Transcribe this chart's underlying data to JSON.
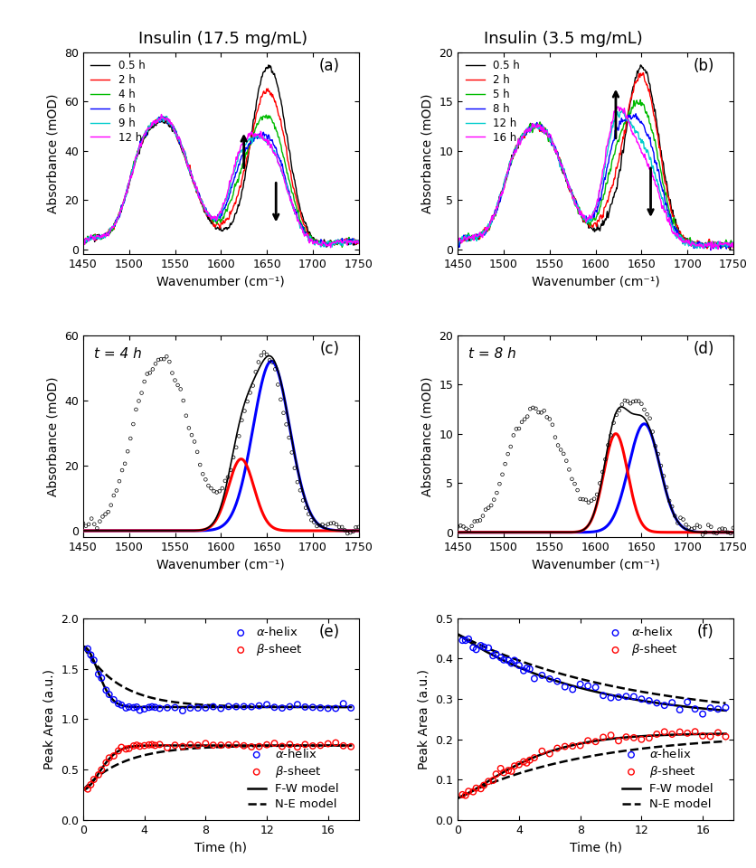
{
  "title_left": "Insulin (17.5 mg/mL)",
  "title_right": "Insulin (3.5 mg/mL)",
  "panel_labels": [
    "(a)",
    "(b)",
    "(c)",
    "(d)",
    "(e)",
    "(f)"
  ],
  "wavenumber_range": [
    1450,
    1750
  ],
  "subplot_a": {
    "ylim": [
      -2,
      80
    ],
    "yticks": [
      0,
      20,
      40,
      60,
      80
    ],
    "legend_times": [
      "0.5 h",
      "2 h",
      "4 h",
      "6 h",
      "9 h",
      "12 h"
    ],
    "legend_colors": [
      "#000000",
      "#ff0000",
      "#00bb00",
      "#0000ff",
      "#00cccc",
      "#ff00ff"
    ]
  },
  "subplot_b": {
    "ylim": [
      -0.5,
      20
    ],
    "yticks": [
      0,
      5,
      10,
      15,
      20
    ],
    "legend_times": [
      "0.5 h",
      "2 h",
      "5 h",
      "8 h",
      "12 h",
      "16 h"
    ],
    "legend_colors": [
      "#000000",
      "#ff0000",
      "#00bb00",
      "#0000ff",
      "#00cccc",
      "#ff00ff"
    ]
  },
  "subplot_c": {
    "ylim": [
      -2,
      60
    ],
    "yticks": [
      0,
      20,
      40,
      60
    ],
    "annotation": "t = 4 h"
  },
  "subplot_d": {
    "ylim": [
      -0.5,
      20
    ],
    "yticks": [
      0,
      5,
      10,
      15,
      20
    ],
    "annotation": "t = 8 h"
  },
  "subplot_e": {
    "ylim": [
      0,
      2.0
    ],
    "yticks": [
      0,
      0.5,
      1.0,
      1.5,
      2.0
    ]
  },
  "subplot_f": {
    "ylim": [
      0.0,
      0.5
    ],
    "yticks": [
      0.0,
      0.1,
      0.2,
      0.3,
      0.4,
      0.5
    ]
  },
  "xlabel_wavenumber": "Wavenumber (cm⁻¹)",
  "xlabel_time": "Time (h)",
  "ylabel_absorbance": "Absorbance (mOD)",
  "ylabel_peak_area": "Peak Area (a.u.)",
  "colors": {
    "blue_line": "#0000ff",
    "red_line": "#ff0000",
    "black_scatter": "#000000"
  }
}
